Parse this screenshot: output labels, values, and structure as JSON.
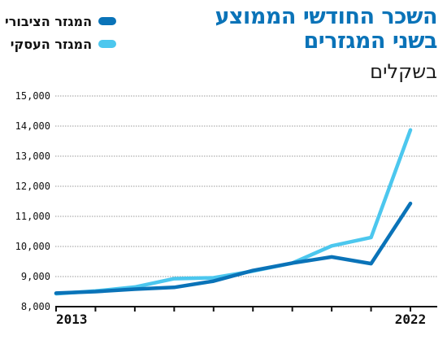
{
  "title_lines": [
    "השכר החודשי הממוצע",
    "בשני המגזרים"
  ],
  "subtitle": "בשקלים",
  "colors": {
    "public": "#0a73b8",
    "business": "#4cc7ee",
    "title": "#0a73b8"
  },
  "chart_data": {
    "type": "line",
    "title": "השכר החודשי הממוצע בשני המגזרים",
    "subtitle": "בשקלים",
    "x": [
      2013,
      2014,
      2015,
      2016,
      2017,
      2018,
      2019,
      2020,
      2021,
      2022
    ],
    "x_tick_labels": [
      "2013",
      "2022"
    ],
    "ylim": [
      8000,
      15000
    ],
    "y_ticks": [
      "8,000",
      "9,000",
      "10,000",
      "11,000",
      "12,000",
      "13,000",
      "14,000",
      "15,000"
    ],
    "grid": true,
    "legend_position": "top-left",
    "series": [
      {
        "name": "המגזר הציבורי",
        "color": "#0a73b8",
        "values": [
          8450,
          8500,
          8580,
          8640,
          8850,
          9200,
          9450,
          9650,
          9430,
          11430
        ]
      },
      {
        "name": "המגזר העסקי",
        "color": "#4cc7ee",
        "values": [
          8430,
          8520,
          8650,
          8930,
          8960,
          9180,
          9450,
          10020,
          10300,
          13870
        ]
      }
    ]
  }
}
